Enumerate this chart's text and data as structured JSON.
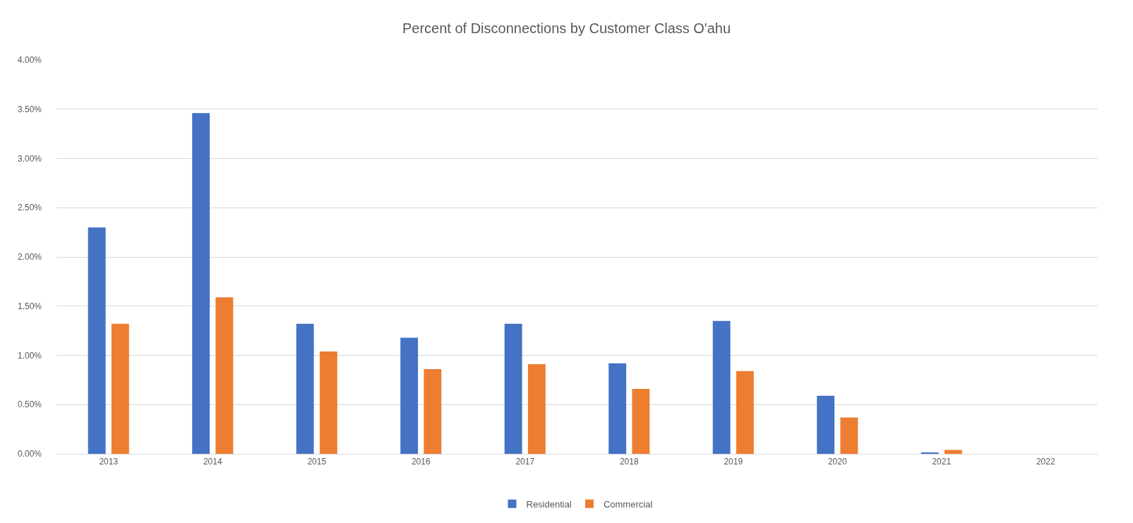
{
  "chart_data": {
    "type": "bar",
    "title": "Percent of Disconnections by Customer Class O'ahu",
    "categories": [
      "2013",
      "2014",
      "2015",
      "2016",
      "2017",
      "2018",
      "2019",
      "2020",
      "2021",
      "2022"
    ],
    "series": [
      {
        "name": "Residential",
        "color": "#4472c4",
        "values": [
          2.3,
          3.46,
          1.32,
          1.18,
          1.32,
          0.92,
          1.35,
          0.59,
          0.01,
          null
        ]
      },
      {
        "name": "Commercial",
        "color": "#ed7d31",
        "values": [
          1.32,
          1.59,
          1.04,
          0.86,
          0.91,
          0.66,
          0.84,
          0.37,
          0.04,
          null
        ]
      }
    ],
    "ylim": [
      0,
      4
    ],
    "yticks": [
      {
        "value": 0,
        "label": "0.00%"
      },
      {
        "value": 0.5,
        "label": "0.50%"
      },
      {
        "value": 1,
        "label": "1.00%"
      },
      {
        "value": 1.5,
        "label": "1.50%"
      },
      {
        "value": 2,
        "label": "2.00%"
      },
      {
        "value": 2.5,
        "label": "2.50%"
      },
      {
        "value": 3,
        "label": "3.00%"
      },
      {
        "value": 3.5,
        "label": "3.50%"
      },
      {
        "value": 4,
        "label": "4.00%"
      }
    ],
    "grid": "y",
    "legend": "bottom"
  }
}
